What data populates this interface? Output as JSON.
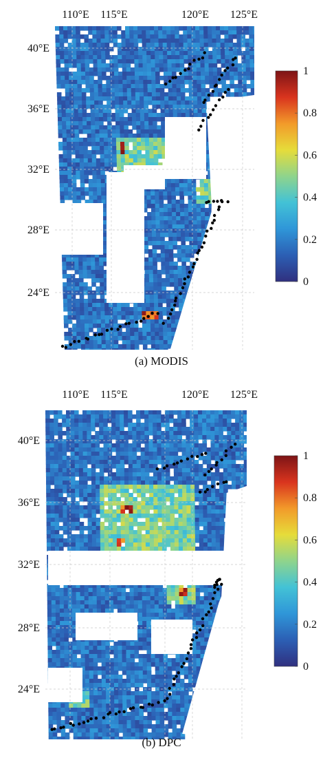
{
  "panels": [
    {
      "caption": "(a) MODIS",
      "top_labels": [
        "110°E",
        "115°E",
        "120°E",
        "125°E"
      ],
      "left_labels": [
        "40°E",
        "36°E",
        "32°E",
        "28°E",
        "24°E"
      ],
      "colorbar_ticks": [
        "1",
        "0.8",
        "0.6",
        "0.4",
        "0.2",
        "0"
      ]
    },
    {
      "caption": "(b) DPC",
      "top_labels": [
        "110°E",
        "115°E",
        "120°E",
        "125°E"
      ],
      "left_labels": [
        "40°E",
        "36°E",
        "32°E",
        "28°E",
        "24°E"
      ],
      "colorbar_ticks": [
        "1",
        "0.8",
        "0.6",
        "0.4",
        "0.2",
        "0"
      ]
    }
  ],
  "colormap": [
    "#30307f",
    "#2c5fb4",
    "#2f96d8",
    "#43c2d6",
    "#8fd48c",
    "#e6dc3a",
    "#f29a2a",
    "#d9341e",
    "#7d1416"
  ],
  "colors": {
    "map_background": "#ffffff",
    "station": "#000000",
    "grid": "#c8c8c8"
  }
}
